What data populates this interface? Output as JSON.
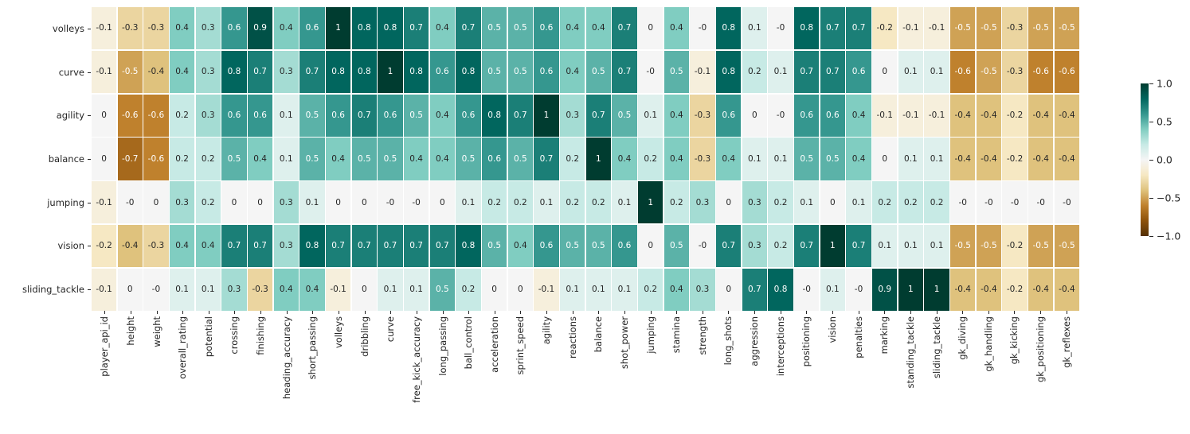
{
  "chart_data": {
    "type": "heatmap",
    "title": "",
    "xlabel": "",
    "ylabel": "",
    "value_range": [
      -1,
      1
    ],
    "grid": "white cell separators",
    "legend_position": "right colorbar",
    "x_categories": [
      "player_api_id",
      "height",
      "weight",
      "overall_rating",
      "potential",
      "crossing",
      "finishing",
      "heading_accuracy",
      "short_passing",
      "volleys",
      "dribbling",
      "curve",
      "free_kick_accuracy",
      "long_passing",
      "ball_control",
      "acceleration",
      "sprint_speed",
      "agility",
      "reactions",
      "balance",
      "shot_power",
      "jumping",
      "stamina",
      "strength",
      "long_shots",
      "aggression",
      "interceptions",
      "positioning",
      "vision",
      "penalties",
      "marking",
      "standing_tackle",
      "sliding_tackle",
      "gk_diving",
      "gk_handling",
      "gk_kicking",
      "gk_positioning",
      "gk_reflexes"
    ],
    "y_categories": [
      "volleys",
      "curve",
      "agility",
      "balance",
      "jumping",
      "vision",
      "sliding_tackle"
    ],
    "cells": [
      [
        "-0.1",
        "-0.3",
        "-0.3",
        "0.4",
        "0.3",
        "0.6",
        "0.9",
        "0.4",
        "0.6",
        "1",
        "0.8",
        "0.8",
        "0.7",
        "0.4",
        "0.7",
        "0.5",
        "0.5",
        "0.6",
        "0.4",
        "0.4",
        "0.7",
        "0",
        "0.4",
        "-0",
        "0.8",
        "0.1",
        "-0",
        "0.8",
        "0.7",
        "0.7",
        "-0.2",
        "-0.1",
        "-0.1",
        "-0.5",
        "-0.5",
        "-0.3",
        "-0.5",
        "-0.5"
      ],
      [
        "-0.1",
        "-0.5",
        "-0.4",
        "0.4",
        "0.3",
        "0.8",
        "0.7",
        "0.3",
        "0.7",
        "0.8",
        "0.8",
        "1",
        "0.8",
        "0.6",
        "0.8",
        "0.5",
        "0.5",
        "0.6",
        "0.4",
        "0.5",
        "0.7",
        "-0",
        "0.5",
        "-0.1",
        "0.8",
        "0.2",
        "0.1",
        "0.7",
        "0.7",
        "0.6",
        "0",
        "0.1",
        "0.1",
        "-0.6",
        "-0.5",
        "-0.3",
        "-0.6",
        "-0.6"
      ],
      [
        "0",
        "-0.6",
        "-0.6",
        "0.2",
        "0.3",
        "0.6",
        "0.6",
        "0.1",
        "0.5",
        "0.6",
        "0.7",
        "0.6",
        "0.5",
        "0.4",
        "0.6",
        "0.8",
        "0.7",
        "1",
        "0.3",
        "0.7",
        "0.5",
        "0.1",
        "0.4",
        "-0.3",
        "0.6",
        "0",
        "-0",
        "0.6",
        "0.6",
        "0.4",
        "-0.1",
        "-0.1",
        "-0.1",
        "-0.4",
        "-0.4",
        "-0.2",
        "-0.4",
        "-0.4"
      ],
      [
        "0",
        "-0.7",
        "-0.6",
        "0.2",
        "0.2",
        "0.5",
        "0.4",
        "0.1",
        "0.5",
        "0.4",
        "0.5",
        "0.5",
        "0.4",
        "0.4",
        "0.5",
        "0.6",
        "0.5",
        "0.7",
        "0.2",
        "1",
        "0.4",
        "0.2",
        "0.4",
        "-0.3",
        "0.4",
        "0.1",
        "0.1",
        "0.5",
        "0.5",
        "0.4",
        "0",
        "0.1",
        "0.1",
        "-0.4",
        "-0.4",
        "-0.2",
        "-0.4",
        "-0.4"
      ],
      [
        "-0.1",
        "-0",
        "0",
        "0.3",
        "0.2",
        "0",
        "0",
        "0.3",
        "0.1",
        "0",
        "0",
        "-0",
        "-0",
        "0",
        "0.1",
        "0.2",
        "0.2",
        "0.1",
        "0.2",
        "0.2",
        "0.1",
        "1",
        "0.2",
        "0.3",
        "0",
        "0.3",
        "0.2",
        "0.1",
        "0",
        "0.1",
        "0.2",
        "0.2",
        "0.2",
        "-0",
        "-0",
        "-0",
        "-0",
        "-0"
      ],
      [
        "-0.2",
        "-0.4",
        "-0.3",
        "0.4",
        "0.4",
        "0.7",
        "0.7",
        "0.3",
        "0.8",
        "0.7",
        "0.7",
        "0.7",
        "0.7",
        "0.7",
        "0.8",
        "0.5",
        "0.4",
        "0.6",
        "0.5",
        "0.5",
        "0.6",
        "0",
        "0.5",
        "-0",
        "0.7",
        "0.3",
        "0.2",
        "0.7",
        "1",
        "0.7",
        "0.1",
        "0.1",
        "0.1",
        "-0.5",
        "-0.5",
        "-0.2",
        "-0.5",
        "-0.5"
      ],
      [
        "-0.1",
        "0",
        "-0",
        "0.1",
        "0.1",
        "0.3",
        "-0.3",
        "0.4",
        "0.4",
        "-0.1",
        "0",
        "0.1",
        "0.1",
        "0.5",
        "0.2",
        "0",
        "0",
        "-0.1",
        "0.1",
        "0.1",
        "0.1",
        "0.2",
        "0.4",
        "0.3",
        "0",
        "0.7",
        "0.8",
        "-0",
        "0.1",
        "-0",
        "0.9",
        "1",
        "1",
        "-0.4",
        "-0.4",
        "-0.2",
        "-0.4",
        "-0.4"
      ]
    ],
    "colormap_anchors": [
      {
        "value": -1.0,
        "color": "#543005"
      },
      {
        "value": -0.8,
        "color": "#8c510a"
      },
      {
        "value": -0.6,
        "color": "#bf812d"
      },
      {
        "value": -0.4,
        "color": "#dfc27d"
      },
      {
        "value": -0.2,
        "color": "#f6e8c3"
      },
      {
        "value": 0.0,
        "color": "#f5f5f5"
      },
      {
        "value": 0.2,
        "color": "#c7eae5"
      },
      {
        "value": 0.4,
        "color": "#80cdc1"
      },
      {
        "value": 0.6,
        "color": "#35978f"
      },
      {
        "value": 0.8,
        "color": "#01665e"
      },
      {
        "value": 1.0,
        "color": "#003c30"
      }
    ],
    "annotation_text_colors": {
      "light": "#ffffff",
      "dark": "#262626",
      "light_threshold_abs": 0.5
    },
    "colorbar_ticks": [
      "1.0",
      "0.5",
      "0.0",
      "−0.5",
      "−1.0"
    ],
    "background_color": "#ffffff"
  }
}
